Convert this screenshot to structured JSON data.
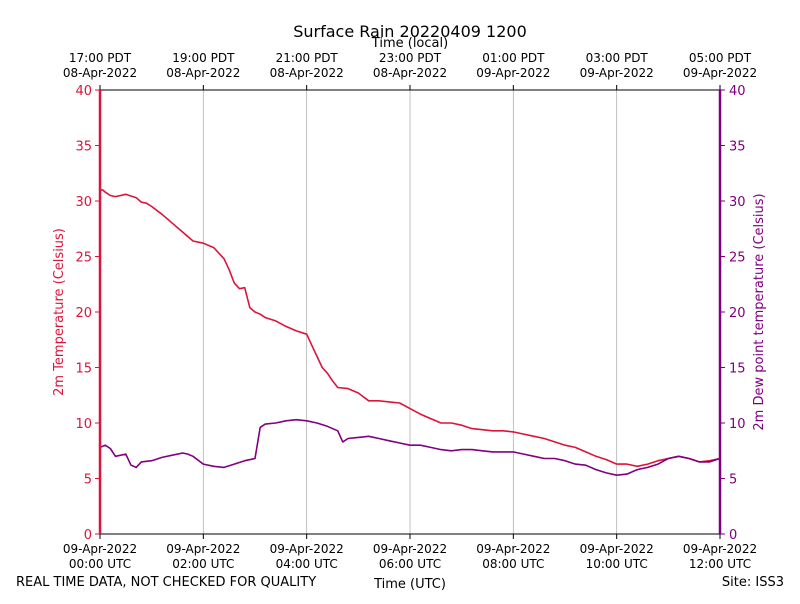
{
  "chart_data": {
    "type": "line",
    "title": "Surface Rain 20220409 1200",
    "xlabel_bottom": "Time (UTC)",
    "xlabel_top": "Time (local)",
    "ylabel_left": "2m Temperature (Celsius)",
    "ylabel_right": "2m Dew point temperature (Celsius)",
    "ylim": [
      0,
      40
    ],
    "yticks": [
      0,
      5,
      10,
      15,
      20,
      25,
      30,
      35,
      40
    ],
    "xlim_hours": [
      0,
      12
    ],
    "grid": "vertical",
    "bottom_ticks": [
      {
        "hour": 0,
        "date": "09-Apr-2022",
        "time": "00:00 UTC"
      },
      {
        "hour": 2,
        "date": "09-Apr-2022",
        "time": "02:00 UTC"
      },
      {
        "hour": 4,
        "date": "09-Apr-2022",
        "time": "04:00 UTC"
      },
      {
        "hour": 6,
        "date": "09-Apr-2022",
        "time": "06:00 UTC"
      },
      {
        "hour": 8,
        "date": "09-Apr-2022",
        "time": "08:00 UTC"
      },
      {
        "hour": 10,
        "date": "09-Apr-2022",
        "time": "10:00 UTC"
      },
      {
        "hour": 12,
        "date": "09-Apr-2022",
        "time": "12:00 UTC"
      }
    ],
    "top_ticks": [
      {
        "hour": 0,
        "time": "17:00 PDT",
        "date": "08-Apr-2022"
      },
      {
        "hour": 2,
        "time": "19:00 PDT",
        "date": "08-Apr-2022"
      },
      {
        "hour": 4,
        "time": "21:00 PDT",
        "date": "08-Apr-2022"
      },
      {
        "hour": 6,
        "time": "23:00 PDT",
        "date": "08-Apr-2022"
      },
      {
        "hour": 8,
        "time": "01:00 PDT",
        "date": "09-Apr-2022"
      },
      {
        "hour": 10,
        "time": "03:00 PDT",
        "date": "09-Apr-2022"
      },
      {
        "hour": 12,
        "time": "05:00 PDT",
        "date": "09-Apr-2022"
      }
    ],
    "series": [
      {
        "name": "2m Temperature",
        "axis": "left",
        "color": "#dc143c",
        "x": [
          0.0,
          0.05,
          0.1,
          0.2,
          0.3,
          0.5,
          0.7,
          0.8,
          0.9,
          1.0,
          1.2,
          1.4,
          1.6,
          1.8,
          2.0,
          2.2,
          2.4,
          2.5,
          2.6,
          2.7,
          2.8,
          2.9,
          3.0,
          3.1,
          3.2,
          3.4,
          3.6,
          3.8,
          4.0,
          4.1,
          4.2,
          4.3,
          4.4,
          4.5,
          4.6,
          4.8,
          5.0,
          5.2,
          5.4,
          5.6,
          5.8,
          6.0,
          6.2,
          6.4,
          6.6,
          6.8,
          7.0,
          7.2,
          7.4,
          7.6,
          7.8,
          8.0,
          8.2,
          8.4,
          8.6,
          8.8,
          9.0,
          9.2,
          9.4,
          9.6,
          9.8,
          10.0,
          10.2,
          10.4,
          10.6,
          10.8,
          11.0,
          11.2,
          11.4,
          11.6,
          11.8,
          12.0
        ],
        "values": [
          31.0,
          31.0,
          30.8,
          30.5,
          30.4,
          30.6,
          30.3,
          29.9,
          29.8,
          29.5,
          28.8,
          28.0,
          27.2,
          26.4,
          26.2,
          25.8,
          24.8,
          23.8,
          22.6,
          22.1,
          22.2,
          20.4,
          20.0,
          19.8,
          19.5,
          19.2,
          18.7,
          18.3,
          18.0,
          17.0,
          16.0,
          15.0,
          14.5,
          13.8,
          13.2,
          13.1,
          12.7,
          12.0,
          12.0,
          11.9,
          11.8,
          11.3,
          10.8,
          10.4,
          10.0,
          10.0,
          9.8,
          9.5,
          9.4,
          9.3,
          9.3,
          9.2,
          9.0,
          8.8,
          8.6,
          8.3,
          8.0,
          7.8,
          7.4,
          7.0,
          6.7,
          6.3,
          6.3,
          6.1,
          6.3,
          6.6,
          6.8,
          7.0,
          6.8,
          6.5,
          6.6,
          6.8
        ]
      },
      {
        "name": "2m Dew point temperature",
        "axis": "right",
        "color": "#800080",
        "x": [
          0.0,
          0.1,
          0.2,
          0.3,
          0.5,
          0.6,
          0.7,
          0.8,
          1.0,
          1.2,
          1.4,
          1.6,
          1.7,
          1.8,
          2.0,
          2.2,
          2.4,
          2.6,
          2.8,
          3.0,
          3.1,
          3.2,
          3.4,
          3.6,
          3.8,
          4.0,
          4.2,
          4.4,
          4.6,
          4.7,
          4.8,
          5.0,
          5.2,
          5.4,
          5.6,
          5.8,
          6.0,
          6.2,
          6.4,
          6.6,
          6.8,
          7.0,
          7.2,
          7.4,
          7.6,
          7.8,
          8.0,
          8.2,
          8.4,
          8.6,
          8.8,
          9.0,
          9.2,
          9.4,
          9.6,
          9.8,
          10.0,
          10.2,
          10.4,
          10.6,
          10.8,
          11.0,
          11.2,
          11.4,
          11.6,
          11.8,
          12.0
        ],
        "values": [
          7.8,
          8.0,
          7.7,
          7.0,
          7.2,
          6.2,
          6.0,
          6.5,
          6.6,
          6.9,
          7.1,
          7.3,
          7.2,
          7.0,
          6.3,
          6.1,
          6.0,
          6.3,
          6.6,
          6.8,
          9.6,
          9.9,
          10.0,
          10.2,
          10.3,
          10.2,
          10.0,
          9.7,
          9.3,
          8.3,
          8.6,
          8.7,
          8.8,
          8.6,
          8.4,
          8.2,
          8.0,
          8.0,
          7.8,
          7.6,
          7.5,
          7.6,
          7.6,
          7.5,
          7.4,
          7.4,
          7.4,
          7.2,
          7.0,
          6.8,
          6.8,
          6.6,
          6.3,
          6.2,
          5.8,
          5.5,
          5.3,
          5.4,
          5.8,
          6.0,
          6.3,
          6.8,
          7.0,
          6.8,
          6.5,
          6.5,
          6.8
        ]
      }
    ]
  },
  "footer": {
    "disclaimer": "REAL TIME DATA, NOT CHECKED FOR QUALITY",
    "site": "Site: ISS3"
  }
}
